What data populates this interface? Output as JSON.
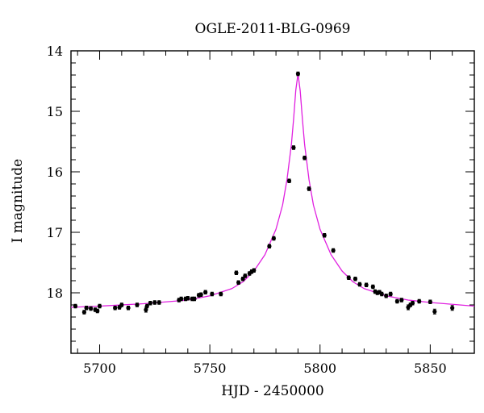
{
  "chart_data": {
    "type": "scatter",
    "title": "OGLE-2011-BLG-0969",
    "xlabel": "HJD - 2450000",
    "ylabel": "I magnitude",
    "xlim": [
      5687,
      5870
    ],
    "ylim": [
      19.0,
      14.0
    ],
    "y_inverted": true,
    "x_major_ticks": [
      5700,
      5750,
      5800,
      5850
    ],
    "x_tick_labels": [
      "5700",
      "5750",
      "5800",
      "5850"
    ],
    "x_minor_step": 10,
    "y_major_ticks": [
      14,
      15,
      16,
      17,
      18
    ],
    "y_tick_labels": [
      "14",
      "15",
      "16",
      "17",
      "18"
    ],
    "y_minor_step": 0.2,
    "grid": false,
    "legend": "none",
    "colors": {
      "points": "#000000",
      "model": "#e020e0",
      "axes": "#000000"
    },
    "series": [
      {
        "kind": "points_with_errorbars",
        "x": [
          5689,
          5693,
          5694,
          5696,
          5698,
          5699,
          5700,
          5707,
          5709,
          5710,
          5713,
          5717,
          5721,
          5721.5,
          5723,
          5725,
          5727,
          5736,
          5737,
          5739,
          5740,
          5742,
          5743,
          5745,
          5746,
          5748,
          5751,
          5755,
          5762,
          5763,
          5765,
          5766,
          5768,
          5769,
          5770,
          5777,
          5779,
          5786,
          5788,
          5790,
          5793,
          5795,
          5802,
          5806,
          5813,
          5816,
          5818,
          5821,
          5824,
          5825,
          5826,
          5827,
          5828,
          5830,
          5832,
          5835,
          5837,
          5840,
          5841,
          5842,
          5845,
          5850,
          5852,
          5860
        ],
        "y": [
          18.22,
          18.32,
          18.25,
          18.26,
          18.28,
          18.3,
          18.22,
          18.25,
          18.24,
          18.2,
          18.25,
          18.2,
          18.28,
          18.22,
          18.17,
          18.16,
          18.16,
          18.12,
          18.1,
          18.1,
          18.09,
          18.1,
          18.1,
          18.04,
          18.03,
          17.99,
          18.02,
          18.02,
          17.67,
          17.83,
          17.77,
          17.72,
          17.68,
          17.65,
          17.63,
          17.23,
          17.1,
          16.15,
          15.6,
          14.38,
          15.77,
          16.28,
          17.05,
          17.3,
          17.75,
          17.77,
          17.86,
          17.87,
          17.9,
          17.98,
          18.0,
          17.99,
          18.02,
          18.05,
          18.02,
          18.14,
          18.12,
          18.24,
          18.2,
          18.17,
          18.14,
          18.15,
          18.31,
          18.25
        ],
        "yerr": [
          0.03,
          0.03,
          0.03,
          0.03,
          0.03,
          0.03,
          0.03,
          0.03,
          0.03,
          0.03,
          0.03,
          0.03,
          0.04,
          0.03,
          0.03,
          0.03,
          0.03,
          0.03,
          0.03,
          0.03,
          0.03,
          0.03,
          0.03,
          0.03,
          0.03,
          0.03,
          0.03,
          0.03,
          0.03,
          0.03,
          0.03,
          0.03,
          0.03,
          0.03,
          0.03,
          0.03,
          0.03,
          0.03,
          0.03,
          0.03,
          0.03,
          0.03,
          0.03,
          0.03,
          0.03,
          0.03,
          0.03,
          0.03,
          0.03,
          0.03,
          0.03,
          0.03,
          0.03,
          0.03,
          0.03,
          0.03,
          0.03,
          0.04,
          0.03,
          0.03,
          0.03,
          0.03,
          0.04,
          0.04
        ]
      },
      {
        "kind": "model_curve",
        "x": [
          5687,
          5700,
          5720,
          5740,
          5750,
          5760,
          5765,
          5770,
          5775,
          5780,
          5783,
          5785,
          5787,
          5788,
          5789,
          5790,
          5791,
          5792,
          5793,
          5795,
          5797,
          5800,
          5805,
          5810,
          5815,
          5820,
          5830,
          5840,
          5850,
          5870
        ],
        "y": [
          18.24,
          18.22,
          18.18,
          18.12,
          18.05,
          17.93,
          17.82,
          17.64,
          17.37,
          16.95,
          16.55,
          16.13,
          15.55,
          15.13,
          14.65,
          14.38,
          14.66,
          15.13,
          15.55,
          16.13,
          16.55,
          16.95,
          17.37,
          17.64,
          17.82,
          17.93,
          18.05,
          18.12,
          18.16,
          18.22
        ]
      }
    ]
  }
}
